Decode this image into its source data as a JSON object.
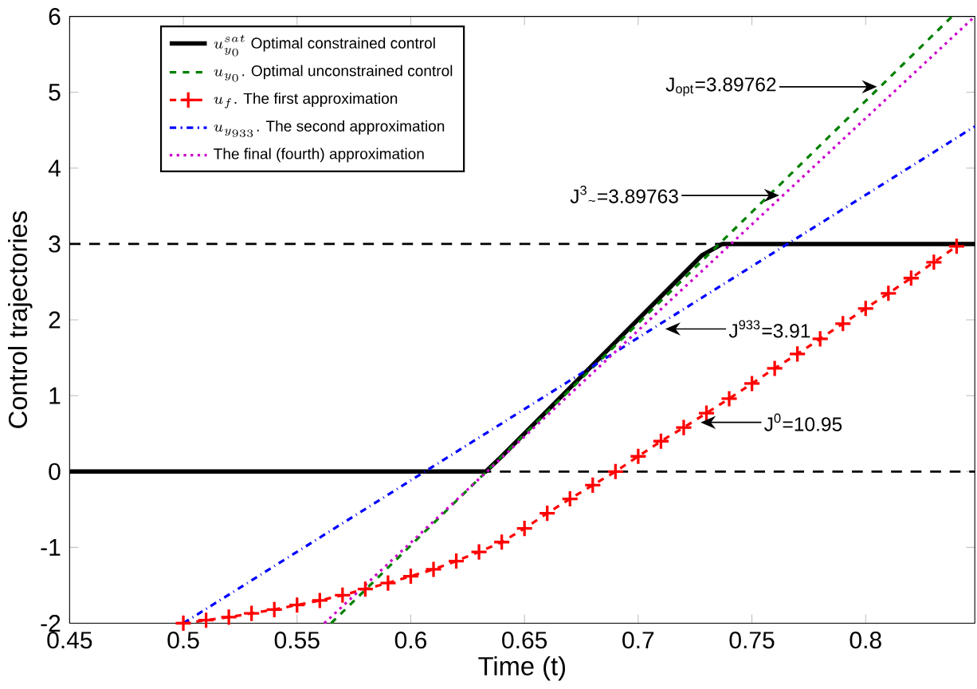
{
  "chart_data": {
    "type": "line",
    "xlabel": "Time (t)",
    "ylabel": "Control trajectories",
    "xlim": [
      0.45,
      0.848
    ],
    "ylim": [
      -2,
      6
    ],
    "xticks": [
      0.45,
      0.5,
      0.55,
      0.6,
      0.65,
      0.7,
      0.75,
      0.8
    ],
    "yticks": [
      -2,
      -1,
      0,
      1,
      2,
      3,
      4,
      5,
      6
    ],
    "grid": false,
    "legend": "top left",
    "series": [
      {
        "name": "u^{sat}_{y_0}\\ \\mbox{Optimal constrained control}",
        "color": "#000000",
        "line_style": "solid",
        "marker": "none",
        "x": [
          0.45,
          0.633,
          0.64,
          0.728,
          0.737,
          0.848
        ],
        "values": [
          0,
          0,
          0.2,
          2.85,
          3,
          3
        ]
      },
      {
        "name": "u_{y_0}\\mbox{. Optimal unconstrained control}",
        "color": "#008000",
        "line_style": "dashed",
        "marker": "none",
        "x": [
          0.565,
          0.838
        ],
        "values": [
          -2,
          6
        ]
      },
      {
        "name": "u_{f}\\mbox{. The first approximation}",
        "color": "#ff0000",
        "line_style": "dashed",
        "marker": "cross",
        "x": [
          0.5,
          0.51,
          0.52,
          0.53,
          0.54,
          0.55,
          0.56,
          0.57,
          0.58,
          0.59,
          0.6,
          0.61,
          0.62,
          0.63,
          0.64,
          0.65,
          0.66,
          0.67,
          0.68,
          0.69,
          0.7,
          0.71,
          0.72,
          0.73,
          0.74,
          0.75,
          0.76,
          0.77,
          0.78,
          0.79,
          0.8,
          0.81,
          0.82,
          0.83,
          0.84
        ],
        "values": [
          -2,
          -1.96,
          -1.92,
          -1.87,
          -1.82,
          -1.76,
          -1.7,
          -1.63,
          -1.55,
          -1.47,
          -1.38,
          -1.29,
          -1.18,
          -1.06,
          -0.93,
          -0.75,
          -0.55,
          -0.36,
          -0.18,
          0,
          0.2,
          0.4,
          0.58,
          0.77,
          0.96,
          1.16,
          1.36,
          1.55,
          1.75,
          1.95,
          2.15,
          2.35,
          2.55,
          2.76,
          2.97
        ]
      },
      {
        "name": "u_{y_{933}}\\mbox{. The second approximation}",
        "color": "#0000ff",
        "line_style": "dashdot",
        "marker": "none",
        "x": [
          0.5,
          0.848
        ],
        "values": [
          -2,
          4.55
        ]
      },
      {
        "name": "\\mbox{The final (fourth) approximation}",
        "color": "#cc00cc",
        "line_style": "dotted",
        "marker": "none",
        "x": [
          0.562,
          0.848
        ],
        "values": [
          -2,
          6
        ]
      }
    ],
    "ref_lines": [
      {
        "axis": "y",
        "value": 0,
        "color": "#000000",
        "line_style": "dashed"
      },
      {
        "axis": "y",
        "value": 3,
        "color": "#000000",
        "line_style": "dashed"
      }
    ],
    "annotations": [
      "J$_{opt}$=3.89762",
      "J$^{3}$$_{~}$=3.89763",
      "J$^{933}$=3.91",
      "J$^{0}$=10.95"
    ]
  }
}
